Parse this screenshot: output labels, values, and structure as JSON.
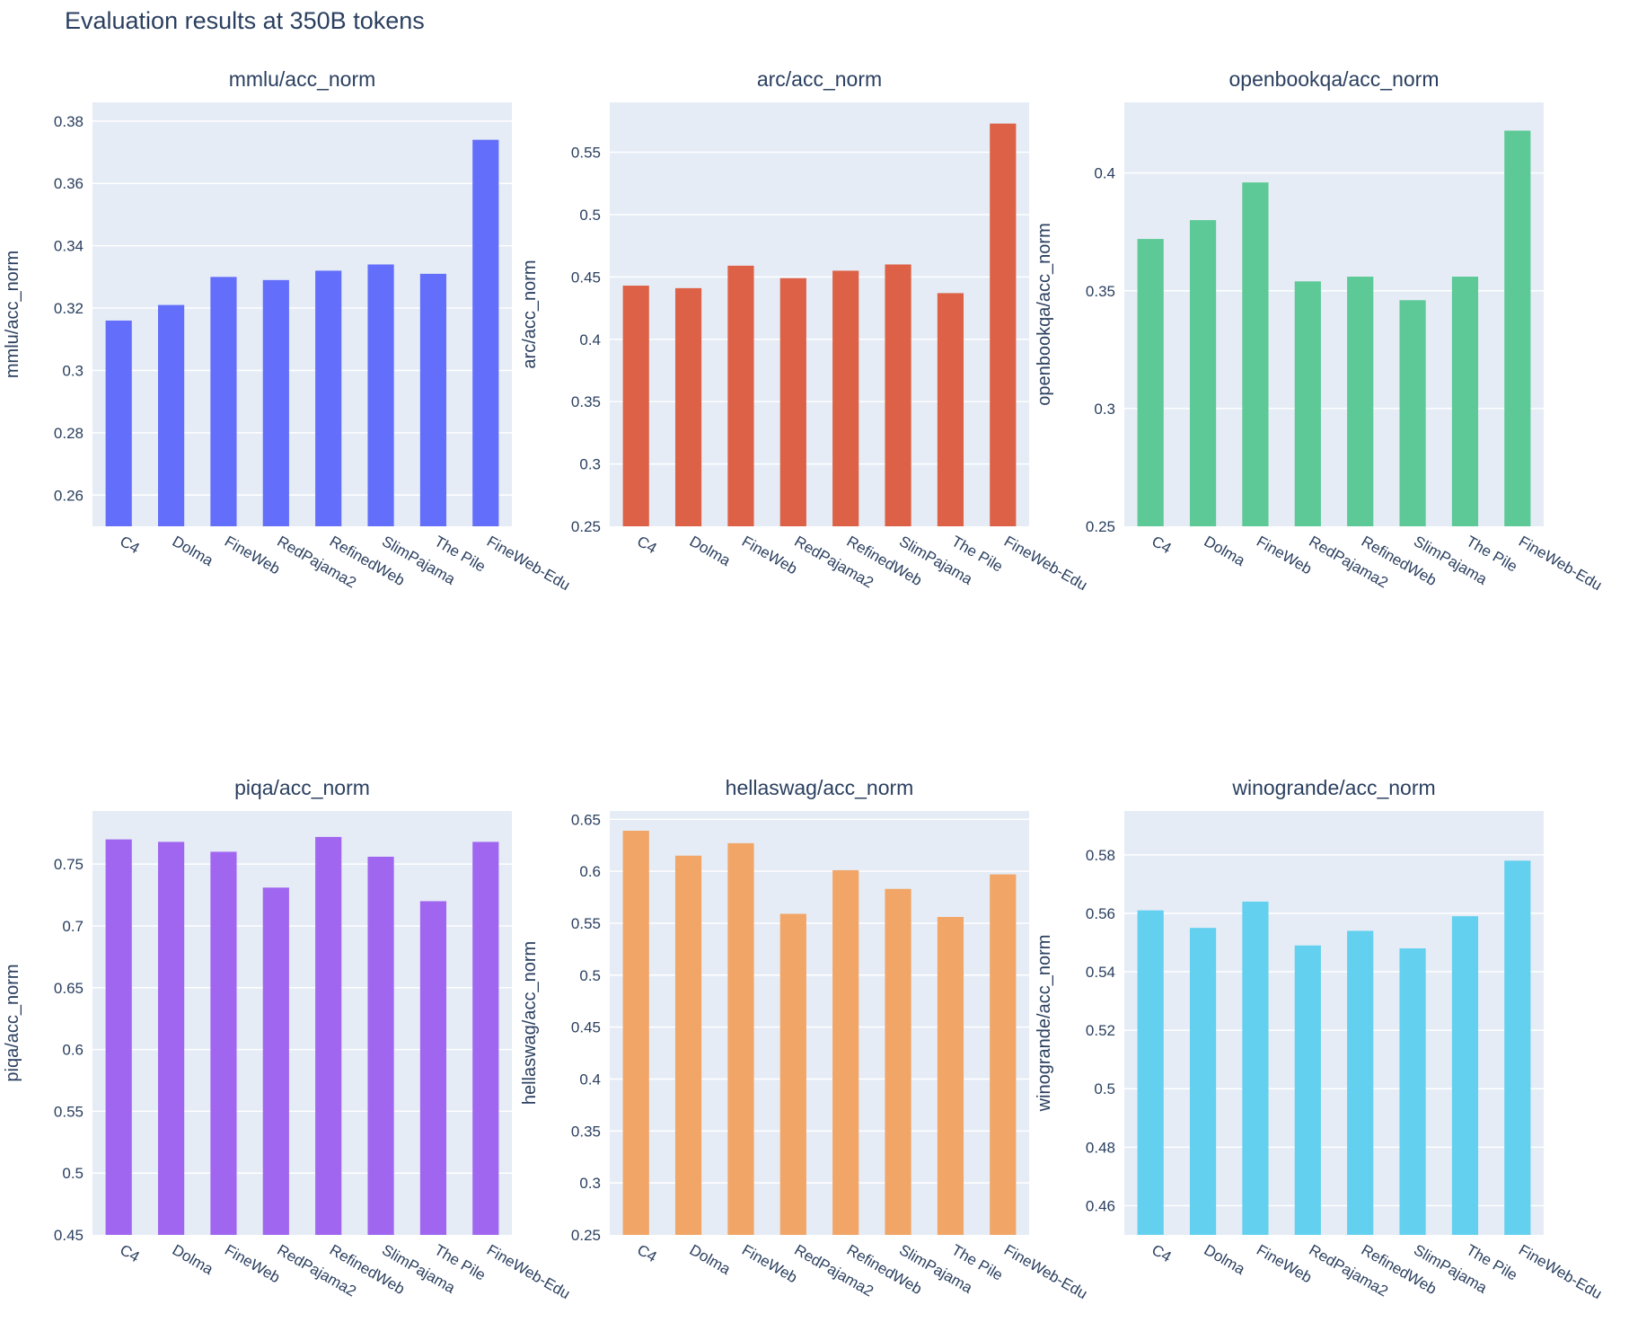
{
  "title": "Evaluation results at 350B tokens",
  "chart_data": [
    {
      "type": "bar",
      "title": "mmlu/acc_norm",
      "ylabel": "mmlu/acc_norm",
      "color": "#636efa",
      "categories": [
        "C4",
        "Dolma",
        "FineWeb",
        "RedPajama2",
        "RefinedWeb",
        "SlimPajama",
        "The Pile",
        "FineWeb-Edu"
      ],
      "values": [
        0.316,
        0.321,
        0.33,
        0.329,
        0.332,
        0.334,
        0.331,
        0.374
      ],
      "ylim": [
        0.25,
        0.386
      ],
      "yticks": [
        0.26,
        0.28,
        0.3,
        0.32,
        0.34,
        0.36,
        0.38
      ],
      "yticklabels": [
        "0.26",
        "0.28",
        "0.3",
        "0.32",
        "0.34",
        "0.36",
        "0.38"
      ]
    },
    {
      "type": "bar",
      "title": "arc/acc_norm",
      "ylabel": "arc/acc_norm",
      "color": "#dd6146",
      "categories": [
        "C4",
        "Dolma",
        "FineWeb",
        "RedPajama2",
        "RefinedWeb",
        "SlimPajama",
        "The Pile",
        "FineWeb-Edu"
      ],
      "values": [
        0.443,
        0.441,
        0.459,
        0.449,
        0.455,
        0.46,
        0.437,
        0.573
      ],
      "ylim": [
        0.25,
        0.59
      ],
      "yticks": [
        0.25,
        0.3,
        0.35,
        0.4,
        0.45,
        0.5,
        0.55
      ],
      "yticklabels": [
        "0.25",
        "0.3",
        "0.35",
        "0.4",
        "0.45",
        "0.5",
        "0.55"
      ]
    },
    {
      "type": "bar",
      "title": "openbookqa/acc_norm",
      "ylabel": "openbookqa/acc_norm",
      "color": "#5cc996",
      "categories": [
        "C4",
        "Dolma",
        "FineWeb",
        "RedPajama2",
        "RefinedWeb",
        "SlimPajama",
        "The Pile",
        "FineWeb-Edu"
      ],
      "values": [
        0.372,
        0.38,
        0.396,
        0.354,
        0.356,
        0.346,
        0.356,
        0.418
      ],
      "ylim": [
        0.25,
        0.43
      ],
      "yticks": [
        0.25,
        0.3,
        0.35,
        0.4
      ],
      "yticklabels": [
        "0.25",
        "0.3",
        "0.35",
        "0.4"
      ]
    },
    {
      "type": "bar",
      "title": "piqa/acc_norm",
      "ylabel": "piqa/acc_norm",
      "color": "#a066f0",
      "categories": [
        "C4",
        "Dolma",
        "FineWeb",
        "RedPajama2",
        "RefinedWeb",
        "SlimPajama",
        "The Pile",
        "FineWeb-Edu"
      ],
      "values": [
        0.77,
        0.768,
        0.76,
        0.731,
        0.772,
        0.756,
        0.72,
        0.768
      ],
      "ylim": [
        0.45,
        0.793
      ],
      "yticks": [
        0.45,
        0.5,
        0.55,
        0.6,
        0.65,
        0.7,
        0.75
      ],
      "yticklabels": [
        "0.45",
        "0.5",
        "0.55",
        "0.6",
        "0.65",
        "0.7",
        "0.75"
      ]
    },
    {
      "type": "bar",
      "title": "hellaswag/acc_norm",
      "ylabel": "hellaswag/acc_norm",
      "color": "#f1a566",
      "categories": [
        "C4",
        "Dolma",
        "FineWeb",
        "RedPajama2",
        "RefinedWeb",
        "SlimPajama",
        "The Pile",
        "FineWeb-Edu"
      ],
      "values": [
        0.639,
        0.615,
        0.627,
        0.559,
        0.601,
        0.583,
        0.556,
        0.597
      ],
      "ylim": [
        0.25,
        0.658
      ],
      "yticks": [
        0.25,
        0.3,
        0.35,
        0.4,
        0.45,
        0.5,
        0.55,
        0.6,
        0.65
      ],
      "yticklabels": [
        "0.25",
        "0.3",
        "0.35",
        "0.4",
        "0.45",
        "0.5",
        "0.55",
        "0.6",
        "0.65"
      ]
    },
    {
      "type": "bar",
      "title": "winogrande/acc_norm",
      "ylabel": "winogrande/acc_norm",
      "color": "#62d0ee",
      "categories": [
        "C4",
        "Dolma",
        "FineWeb",
        "RedPajama2",
        "RefinedWeb",
        "SlimPajama",
        "The Pile",
        "FineWeb-Edu"
      ],
      "values": [
        0.561,
        0.555,
        0.564,
        0.549,
        0.554,
        0.548,
        0.559,
        0.578
      ],
      "ylim": [
        0.45,
        0.595
      ],
      "yticks": [
        0.46,
        0.48,
        0.5,
        0.52,
        0.54,
        0.56,
        0.58
      ],
      "yticklabels": [
        "0.46",
        "0.48",
        "0.5",
        "0.52",
        "0.54",
        "0.56",
        "0.58"
      ]
    }
  ]
}
